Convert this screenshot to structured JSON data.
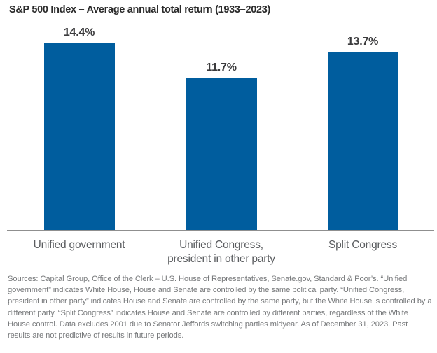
{
  "title": "S&P 500 Index – Average annual total return (1933–2023)",
  "chart_data": {
    "type": "bar",
    "title": "S&P 500 Index – Average annual total return (1933–2023)",
    "categories": [
      "Unified government",
      "Unified Congress,\npresident in other party",
      "Split Congress"
    ],
    "values": [
      14.4,
      11.7,
      13.7
    ],
    "value_labels": [
      "14.4%",
      "11.7%",
      "13.7%"
    ],
    "unit": "percent",
    "xlabel": "",
    "ylabel": "",
    "ylim": [
      0,
      15
    ],
    "grid": false,
    "legend": false,
    "y_axis_shown": false,
    "data_label_position": "above-bar"
  },
  "colors": {
    "bar_blue": "#005D9E",
    "axis_gray": "#8F8F8F",
    "title_text": "#2B2B2B",
    "value_label_text": "#3B3B3D",
    "category_label_text": "#5B5D60",
    "footnote_text": "#77797B",
    "background": "#FFFFFF"
  },
  "footnote": "Sources: Capital Group, Office of the Clerk – U.S. House of Representatives, Senate.gov, Standard & Poor’s. “Unified government” indicates White House, House and Senate are controlled by the same political party. “Unified Congress, president in other party” indicates House and Senate are controlled by the same party, but the White House is controlled by a different party. “Split Congress” indicates House and Senate are controlled by different parties, regardless of the White House control. Data excludes 2001 due to Senator Jeffords switching parties midyear. As of December 31, 2023. Past results are not predictive of results in future periods."
}
